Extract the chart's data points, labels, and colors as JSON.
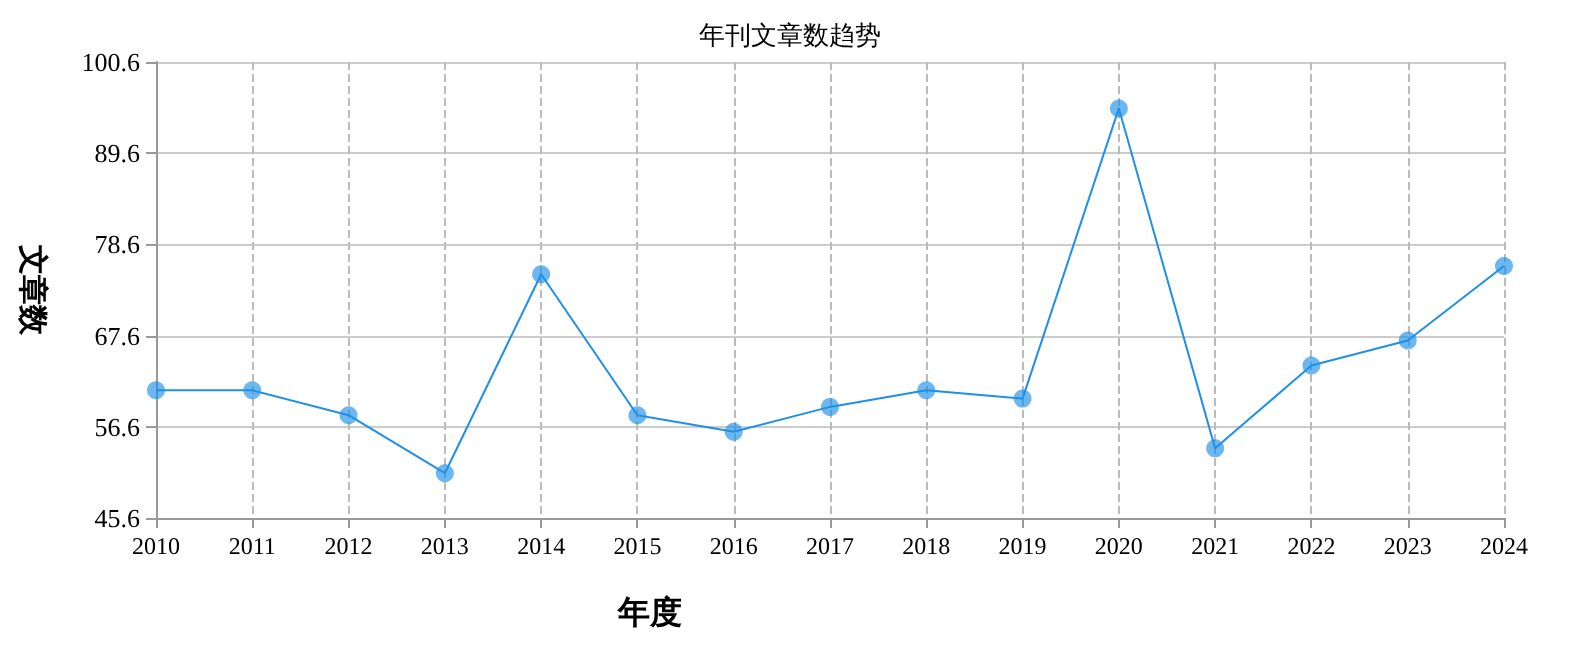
{
  "chart_data": {
    "type": "line",
    "title": "年刊文章数趋势",
    "xlabel": "年度",
    "ylabel": "文章数",
    "categories": [
      "2010",
      "2011",
      "2012",
      "2013",
      "2014",
      "2015",
      "2016",
      "2017",
      "2018",
      "2019",
      "2020",
      "2021",
      "2022",
      "2023",
      "2024"
    ],
    "series": [
      {
        "color": "#1e90e8",
        "values": [
          61,
          61,
          58,
          51,
          75,
          58,
          56,
          59,
          61,
          60,
          95,
          54,
          64,
          67,
          76
        ]
      }
    ],
    "ylim": [
      45.6,
      100.6
    ],
    "yticks": [
      45.6,
      56.6,
      67.6,
      78.6,
      89.6,
      100.6
    ],
    "grid": true,
    "marker": "circle",
    "line_style": "solid"
  }
}
